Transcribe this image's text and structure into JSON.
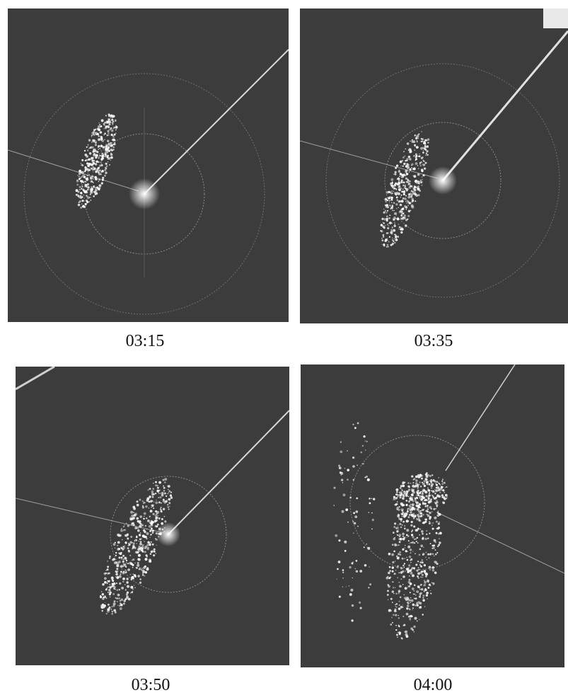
{
  "panels": [
    {
      "time": "03:15"
    },
    {
      "time": "03:35"
    },
    {
      "time": "03:50"
    },
    {
      "time": "04:00"
    }
  ],
  "colors": {
    "background": "#3c3c3c",
    "echo": "#ffffff",
    "range_ring": "#8a8a8a"
  }
}
